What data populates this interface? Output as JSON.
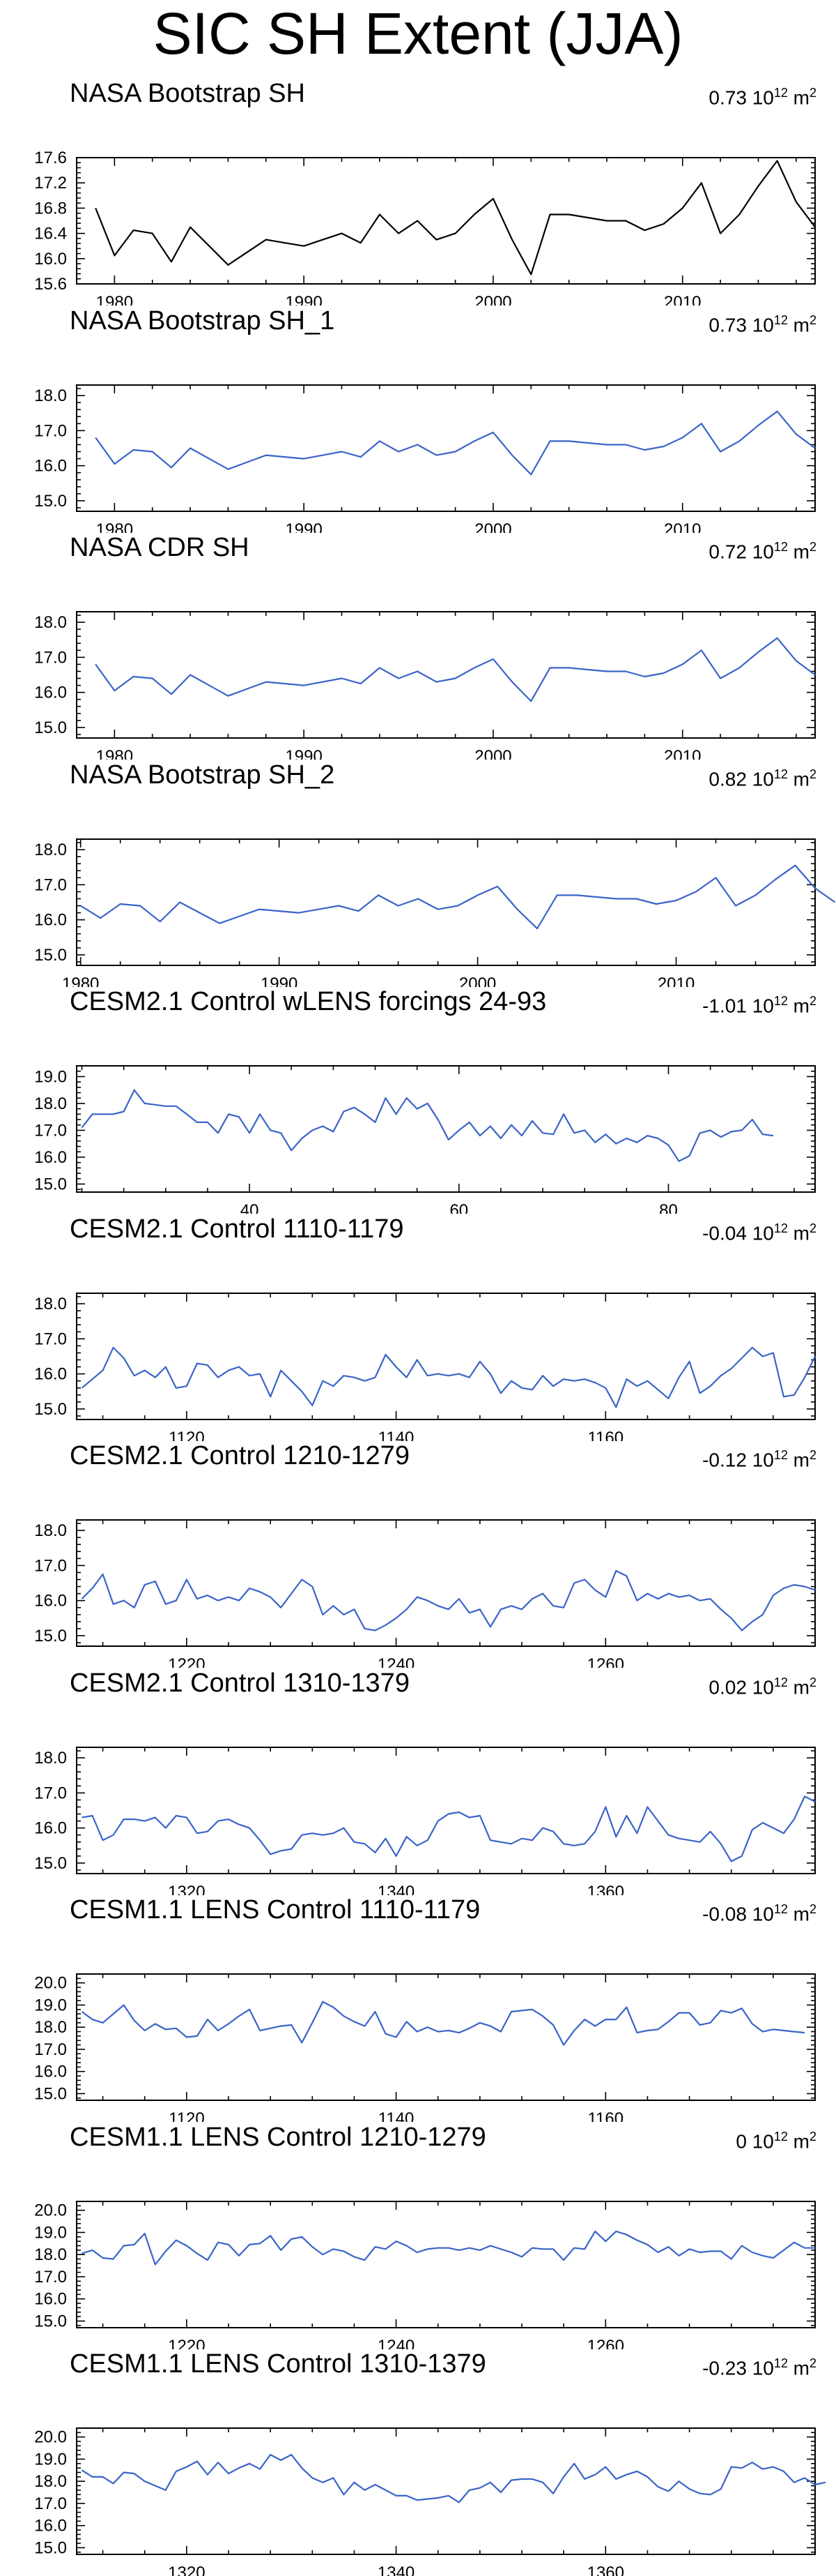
{
  "title": "SIC SH Extent (JJA)",
  "colors": {
    "black": "#000000",
    "blue": "#3a64c8"
  },
  "unit_base": "10",
  "unit_exp": "12",
  "unit_suffix": "m",
  "unit_sup2": "2",
  "panels": [
    {
      "title": "NASA Bootstrap SH",
      "trend": "0.73",
      "color": "#000000",
      "chart_data": {
        "type": "line",
        "x_start": 1979,
        "values": [
          16.8,
          16.05,
          16.45,
          16.4,
          15.95,
          16.5,
          16.2,
          15.9,
          16.1,
          16.3,
          16.25,
          16.2,
          16.3,
          16.4,
          16.25,
          16.7,
          16.4,
          16.6,
          16.3,
          16.4,
          16.7,
          16.95,
          16.3,
          15.75,
          16.7,
          16.7,
          16.65,
          16.6,
          16.6,
          16.45,
          16.55,
          16.8,
          17.2,
          16.4,
          16.7,
          17.15,
          17.55,
          16.9,
          16.5
        ],
        "ylim": [
          15.6,
          17.6
        ],
        "yticks": [
          "15.6",
          "16.0",
          "16.4",
          "16.8",
          "17.2",
          "17.6"
        ],
        "xlim": [
          1978,
          2017
        ],
        "xticks": [
          1980,
          1990,
          2000,
          2010
        ]
      }
    },
    {
      "title": "NASA Bootstrap SH_1",
      "trend": "0.73",
      "color": "#3a64c8",
      "chart_data": {
        "type": "line",
        "x_start": 1979,
        "values": [
          16.8,
          16.05,
          16.45,
          16.4,
          15.95,
          16.5,
          16.2,
          15.9,
          16.1,
          16.3,
          16.25,
          16.2,
          16.3,
          16.4,
          16.25,
          16.7,
          16.4,
          16.6,
          16.3,
          16.4,
          16.7,
          16.95,
          16.3,
          15.75,
          16.7,
          16.7,
          16.65,
          16.6,
          16.6,
          16.45,
          16.55,
          16.8,
          17.2,
          16.4,
          16.7,
          17.15,
          17.55,
          16.9,
          16.5
        ],
        "ylim": [
          14.7,
          18.3
        ],
        "yticks": [
          "15.0",
          "16.0",
          "17.0",
          "18.0"
        ],
        "xlim": [
          1978,
          2017
        ],
        "xticks": [
          1980,
          1990,
          2000,
          2010
        ]
      }
    },
    {
      "title": "NASA CDR SH",
      "trend": "0.72",
      "color": "#3a64c8",
      "chart_data": {
        "type": "line",
        "x_start": 1979,
        "values": [
          16.8,
          16.05,
          16.45,
          16.4,
          15.95,
          16.5,
          16.2,
          15.9,
          16.1,
          16.3,
          16.25,
          16.2,
          16.3,
          16.4,
          16.25,
          16.7,
          16.4,
          16.6,
          16.3,
          16.4,
          16.7,
          16.95,
          16.3,
          15.75,
          16.7,
          16.7,
          16.65,
          16.6,
          16.6,
          16.45,
          16.55,
          16.8,
          17.2,
          16.4,
          16.7,
          17.15,
          17.55,
          16.9,
          16.5
        ],
        "ylim": [
          14.7,
          18.3
        ],
        "yticks": [
          "15.0",
          "16.0",
          "17.0",
          "18.0"
        ],
        "xlim": [
          1978,
          2017
        ],
        "xticks": [
          1980,
          1990,
          2000,
          2010
        ]
      }
    },
    {
      "title": "NASA Bootstrap SH_2",
      "trend": "0.82",
      "color": "#3a64c8",
      "chart_data": {
        "type": "line",
        "x_start": 1980,
        "values": [
          16.4,
          16.05,
          16.45,
          16.4,
          15.95,
          16.5,
          16.2,
          15.9,
          16.1,
          16.3,
          16.25,
          16.2,
          16.3,
          16.4,
          16.25,
          16.7,
          16.4,
          16.6,
          16.3,
          16.4,
          16.7,
          16.95,
          16.3,
          15.75,
          16.7,
          16.7,
          16.65,
          16.6,
          16.6,
          16.45,
          16.55,
          16.8,
          17.2,
          16.4,
          16.7,
          17.15,
          17.55,
          16.9,
          16.5
        ],
        "ylim": [
          14.7,
          18.3
        ],
        "yticks": [
          "15.0",
          "16.0",
          "17.0",
          "18.0"
        ],
        "xlim": [
          1979.8,
          2017
        ],
        "xticks": [
          1980,
          1990,
          2000,
          2010
        ]
      }
    },
    {
      "title": "CESM2.1 Control wLENS forcings 24-93",
      "trend": "-1.01",
      "color": "#3a64c8",
      "chart_data": {
        "type": "line",
        "x_start": 24,
        "values": [
          17.1,
          17.6,
          17.6,
          17.6,
          17.7,
          18.5,
          18.0,
          17.95,
          17.9,
          17.9,
          17.6,
          17.3,
          17.3,
          16.9,
          17.6,
          17.5,
          16.9,
          17.6,
          17.0,
          16.9,
          16.25,
          16.7,
          17.0,
          17.15,
          16.95,
          17.7,
          17.85,
          17.6,
          17.3,
          18.2,
          17.6,
          18.2,
          17.8,
          18.0,
          17.4,
          16.65,
          17.0,
          17.3,
          16.8,
          17.15,
          16.7,
          17.2,
          16.8,
          17.35,
          16.9,
          16.85,
          17.6,
          16.9,
          17.0,
          16.55,
          16.85,
          16.5,
          16.7,
          16.55,
          16.8,
          16.7,
          16.45,
          15.85,
          16.05,
          16.9,
          17.0,
          16.75,
          16.95,
          17.0,
          17.4,
          16.85,
          16.8
        ],
        "ylim": [
          14.7,
          19.4
        ],
        "yticks": [
          "15.0",
          "16.0",
          "17.0",
          "18.0",
          "19.0"
        ],
        "xlim": [
          23.5,
          94
        ],
        "xticks": [
          40,
          60,
          80
        ]
      }
    },
    {
      "title": "CESM2.1 Control 1110-1179",
      "trend": "-0.04",
      "color": "#3a64c8",
      "chart_data": {
        "type": "line",
        "x_start": 1110,
        "values": [
          15.6,
          15.85,
          16.1,
          16.75,
          16.45,
          15.95,
          16.1,
          15.9,
          16.2,
          15.6,
          15.65,
          16.3,
          16.25,
          15.9,
          16.1,
          16.2,
          15.95,
          16.0,
          15.35,
          16.1,
          15.8,
          15.5,
          15.1,
          15.8,
          15.65,
          15.95,
          15.9,
          15.8,
          15.9,
          16.55,
          16.2,
          15.9,
          16.4,
          15.95,
          16.0,
          15.95,
          16.0,
          15.9,
          16.35,
          16.0,
          15.45,
          15.8,
          15.6,
          15.55,
          15.95,
          15.65,
          15.85,
          15.8,
          15.85,
          15.75,
          15.6,
          15.05,
          15.85,
          15.65,
          15.8,
          15.55,
          15.3,
          15.9,
          16.35,
          15.45,
          15.65,
          15.95,
          16.15,
          16.45,
          16.75,
          16.5,
          16.6,
          15.35,
          15.4,
          15.9,
          16.5
        ],
        "ylim": [
          14.7,
          18.3
        ],
        "yticks": [
          "15.0",
          "16.0",
          "17.0",
          "18.0"
        ],
        "xlim": [
          1109.5,
          1180
        ],
        "xticks": [
          1120,
          1140,
          1160
        ]
      }
    },
    {
      "title": "CESM2.1 Control 1210-1279",
      "trend": "-0.12",
      "color": "#3a64c8",
      "chart_data": {
        "type": "line",
        "x_start": 1210,
        "values": [
          16.05,
          16.35,
          16.75,
          15.9,
          16.0,
          15.8,
          16.45,
          16.55,
          15.9,
          16.0,
          16.6,
          16.05,
          16.15,
          16.0,
          16.1,
          16.0,
          16.35,
          16.25,
          16.1,
          15.8,
          16.2,
          16.6,
          16.4,
          15.6,
          15.85,
          15.6,
          15.75,
          15.2,
          15.15,
          15.3,
          15.5,
          15.75,
          16.1,
          16.0,
          15.85,
          15.75,
          16.05,
          15.65,
          15.75,
          15.25,
          15.75,
          15.85,
          15.75,
          16.05,
          16.2,
          15.85,
          15.8,
          16.5,
          16.6,
          16.3,
          16.1,
          16.85,
          16.7,
          16.0,
          16.2,
          16.05,
          16.2,
          16.1,
          16.15,
          16.0,
          16.05,
          15.75,
          15.5,
          15.15,
          15.4,
          15.6,
          16.15,
          16.35,
          16.45,
          16.4,
          16.3
        ],
        "ylim": [
          14.7,
          18.3
        ],
        "yticks": [
          "15.0",
          "16.0",
          "17.0",
          "18.0"
        ],
        "xlim": [
          1209.5,
          1280
        ],
        "xticks": [
          1220,
          1240,
          1260
        ]
      }
    },
    {
      "title": "CESM2.1 Control 1310-1379",
      "trend": "0.02",
      "color": "#3a64c8",
      "chart_data": {
        "type": "line",
        "x_start": 1310,
        "values": [
          16.3,
          16.35,
          15.65,
          15.8,
          16.25,
          16.25,
          16.2,
          16.3,
          16.0,
          16.35,
          16.3,
          15.85,
          15.9,
          16.2,
          16.25,
          16.1,
          16.0,
          15.65,
          15.25,
          15.35,
          15.4,
          15.8,
          15.85,
          15.8,
          15.85,
          16.0,
          15.6,
          15.55,
          15.3,
          15.7,
          15.2,
          15.75,
          15.5,
          15.65,
          16.2,
          16.4,
          16.45,
          16.3,
          16.35,
          15.65,
          15.6,
          15.55,
          15.7,
          15.65,
          16.0,
          15.9,
          15.55,
          15.5,
          15.55,
          15.9,
          16.6,
          15.75,
          16.35,
          15.85,
          16.6,
          16.2,
          15.8,
          15.7,
          15.65,
          15.6,
          15.9,
          15.55,
          15.05,
          15.2,
          15.95,
          16.15,
          16.0,
          15.85,
          16.25,
          16.9,
          16.75
        ],
        "ylim": [
          14.7,
          18.3
        ],
        "yticks": [
          "15.0",
          "16.0",
          "17.0",
          "18.0"
        ],
        "xlim": [
          1309.5,
          1380
        ],
        "xticks": [
          1320,
          1340,
          1360
        ]
      }
    },
    {
      "title": "CESM1.1 LENS Control 1110-1179",
      "trend": "-0.08",
      "color": "#3a64c8",
      "chart_data": {
        "type": "line",
        "x_start": 1110,
        "values": [
          18.7,
          18.35,
          18.2,
          18.6,
          19.0,
          18.3,
          17.85,
          18.15,
          17.9,
          17.95,
          17.55,
          17.6,
          18.35,
          17.85,
          18.15,
          18.5,
          18.8,
          17.85,
          17.95,
          18.05,
          18.1,
          17.3,
          18.2,
          19.15,
          18.9,
          18.5,
          18.25,
          18.05,
          18.7,
          17.7,
          17.55,
          18.25,
          17.8,
          18.0,
          17.8,
          17.85,
          17.75,
          17.95,
          18.2,
          18.05,
          17.8,
          18.7,
          18.75,
          18.8,
          18.5,
          18.1,
          17.2,
          17.85,
          18.35,
          18.05,
          18.35,
          18.35,
          18.9,
          17.75,
          17.85,
          17.9,
          18.25,
          18.65,
          18.65,
          18.1,
          18.2,
          18.75,
          18.65,
          18.85,
          18.15,
          17.8,
          17.9,
          17.85,
          17.8,
          17.75
        ],
        "ylim": [
          14.7,
          20.4
        ],
        "yticks": [
          "15.0",
          "16.0",
          "17.0",
          "18.0",
          "19.0",
          "20.0"
        ],
        "xlim": [
          1109.5,
          1180
        ],
        "xticks": [
          1120,
          1140,
          1160
        ]
      }
    },
    {
      "title": "CESM1.1 LENS Control 1210-1279",
      "trend": "0",
      "color": "#3a64c8",
      "chart_data": {
        "type": "line",
        "x_start": 1210,
        "values": [
          18.05,
          18.2,
          17.85,
          17.8,
          18.4,
          18.45,
          18.95,
          17.55,
          18.15,
          18.65,
          18.4,
          18.05,
          17.75,
          18.55,
          18.45,
          17.95,
          18.45,
          18.5,
          18.85,
          18.2,
          18.7,
          18.8,
          18.35,
          18.0,
          18.25,
          18.15,
          17.9,
          17.75,
          18.35,
          18.25,
          18.6,
          18.4,
          18.1,
          18.25,
          18.3,
          18.3,
          18.2,
          18.3,
          18.2,
          18.4,
          18.25,
          18.1,
          17.9,
          18.3,
          18.25,
          18.25,
          17.75,
          18.3,
          18.25,
          19.05,
          18.6,
          19.05,
          18.9,
          18.65,
          18.45,
          18.1,
          18.35,
          17.95,
          18.25,
          18.1,
          18.15,
          18.15,
          17.8,
          18.4,
          18.1,
          17.95,
          17.85,
          18.2,
          18.55,
          18.3,
          18.3
        ],
        "ylim": [
          14.7,
          20.4
        ],
        "yticks": [
          "15.0",
          "16.0",
          "17.0",
          "18.0",
          "19.0",
          "20.0"
        ],
        "xlim": [
          1209.5,
          1280
        ],
        "xticks": [
          1220,
          1240,
          1260
        ]
      }
    },
    {
      "title": "CESM1.1 LENS Control 1310-1379",
      "trend": "-0.23",
      "color": "#3a64c8",
      "chart_data": {
        "type": "line",
        "x_start": 1310,
        "values": [
          18.5,
          18.2,
          18.2,
          17.9,
          18.4,
          18.35,
          18.0,
          17.8,
          17.6,
          18.45,
          18.65,
          18.9,
          18.3,
          18.85,
          18.35,
          18.6,
          18.8,
          18.55,
          19.2,
          18.95,
          19.2,
          18.6,
          18.15,
          17.95,
          18.15,
          17.4,
          17.95,
          17.6,
          17.85,
          17.6,
          17.35,
          17.35,
          17.15,
          17.2,
          17.25,
          17.35,
          17.05,
          17.6,
          17.7,
          17.95,
          17.5,
          18.05,
          18.1,
          18.1,
          17.95,
          17.45,
          18.2,
          18.8,
          18.1,
          18.3,
          18.65,
          18.1,
          18.3,
          18.45,
          18.2,
          17.75,
          17.55,
          18.0,
          17.65,
          17.45,
          17.4,
          17.65,
          18.65,
          18.6,
          18.85,
          18.55,
          18.65,
          18.45,
          17.95,
          18.15,
          17.85,
          17.95
        ],
        "ylim": [
          14.7,
          20.4
        ],
        "yticks": [
          "15.0",
          "16.0",
          "17.0",
          "18.0",
          "19.0",
          "20.0"
        ],
        "xlim": [
          1309.5,
          1380
        ],
        "xticks": [
          1320,
          1340,
          1360
        ]
      }
    }
  ]
}
